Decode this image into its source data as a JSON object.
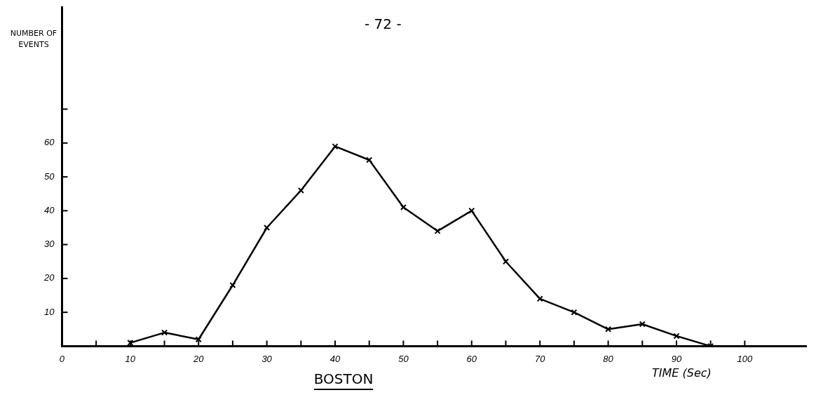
{
  "chart_data": {
    "type": "line",
    "title": "BOSTON",
    "xlabel": "TIME (Sec)",
    "ylabel": "NUMBER OF EVENTS",
    "annotations": [
      "- 72 -"
    ],
    "x": [
      10,
      15,
      20,
      25,
      30,
      35,
      40,
      45,
      50,
      55,
      60,
      65,
      70,
      75,
      80,
      85,
      90,
      95
    ],
    "series": [
      {
        "color": "#000000",
        "values": [
          1,
          4,
          2,
          18,
          35,
          46,
          59,
          55,
          41,
          34,
          40,
          25,
          14,
          10,
          5,
          6.5,
          3,
          0
        ]
      }
    ],
    "xlim": [
      0,
      109
    ],
    "ylim": [
      0,
      100
    ],
    "xticks": [
      0,
      {
        "value": 5,
        "label": null
      },
      10,
      {
        "value": 15,
        "label": null
      },
      20,
      {
        "value": 25,
        "label": null
      },
      30,
      {
        "value": 35,
        "label": null
      },
      40,
      {
        "value": 45,
        "label": null
      },
      50,
      {
        "value": 55,
        "label": null
      },
      60,
      {
        "value": 65,
        "label": null
      },
      70,
      {
        "value": 75,
        "label": null
      },
      80,
      {
        "value": 85,
        "label": null
      },
      90,
      {
        "value": 95,
        "label": null
      },
      100
    ],
    "yticks": [
      10,
      20,
      30,
      40,
      50,
      60,
      {
        "value": 70,
        "label": null
      }
    ],
    "grid": false,
    "legend": false,
    "marker": "cross",
    "line_style": "solid"
  }
}
